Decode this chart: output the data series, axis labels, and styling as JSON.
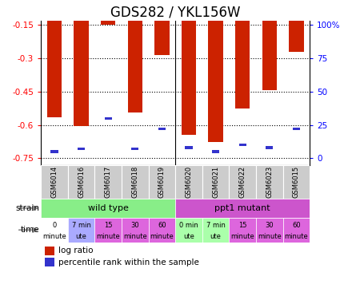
{
  "title": "GDS282 / YKL156W",
  "samples": [
    "GSM6014",
    "GSM6016",
    "GSM6017",
    "GSM6018",
    "GSM6019",
    "GSM6020",
    "GSM6021",
    "GSM6022",
    "GSM6023",
    "GSM6015"
  ],
  "log_ratio": [
    -0.565,
    -0.605,
    -0.148,
    -0.545,
    -0.285,
    -0.645,
    -0.675,
    -0.525,
    -0.445,
    -0.27
  ],
  "percentile": [
    5,
    7,
    30,
    7,
    22,
    8,
    5,
    10,
    8,
    22
  ],
  "ylim_left": [
    -0.78,
    -0.13
  ],
  "yticks_left": [
    -0.75,
    -0.6,
    -0.45,
    -0.3,
    -0.15
  ],
  "yticks_right": [
    0,
    25,
    50,
    75,
    100
  ],
  "ylim_right": [
    -5.4,
    108
  ],
  "bar_color": "#cc2200",
  "percentile_color": "#3333cc",
  "strain_wt_color": "#88ee88",
  "strain_mut_color": "#cc55cc",
  "time_bg_colors": [
    "#ffffff",
    "#aaaaff",
    "#dd66dd",
    "#dd66dd",
    "#dd66dd",
    "#aaffaa",
    "#aaffaa",
    "#dd66dd",
    "#dd66dd",
    "#dd66dd"
  ],
  "time_labels_top": [
    "0",
    "7 min",
    "15",
    "30",
    "60",
    "0 min",
    "7 min",
    "15",
    "30",
    "60"
  ],
  "time_labels_bot": [
    "minute",
    "ute",
    "minute",
    "minute",
    "minute",
    "ute",
    "ute",
    "minute",
    "minute",
    "minute"
  ],
  "title_fontsize": 12,
  "tick_fontsize": 7.5,
  "bar_width": 0.55
}
